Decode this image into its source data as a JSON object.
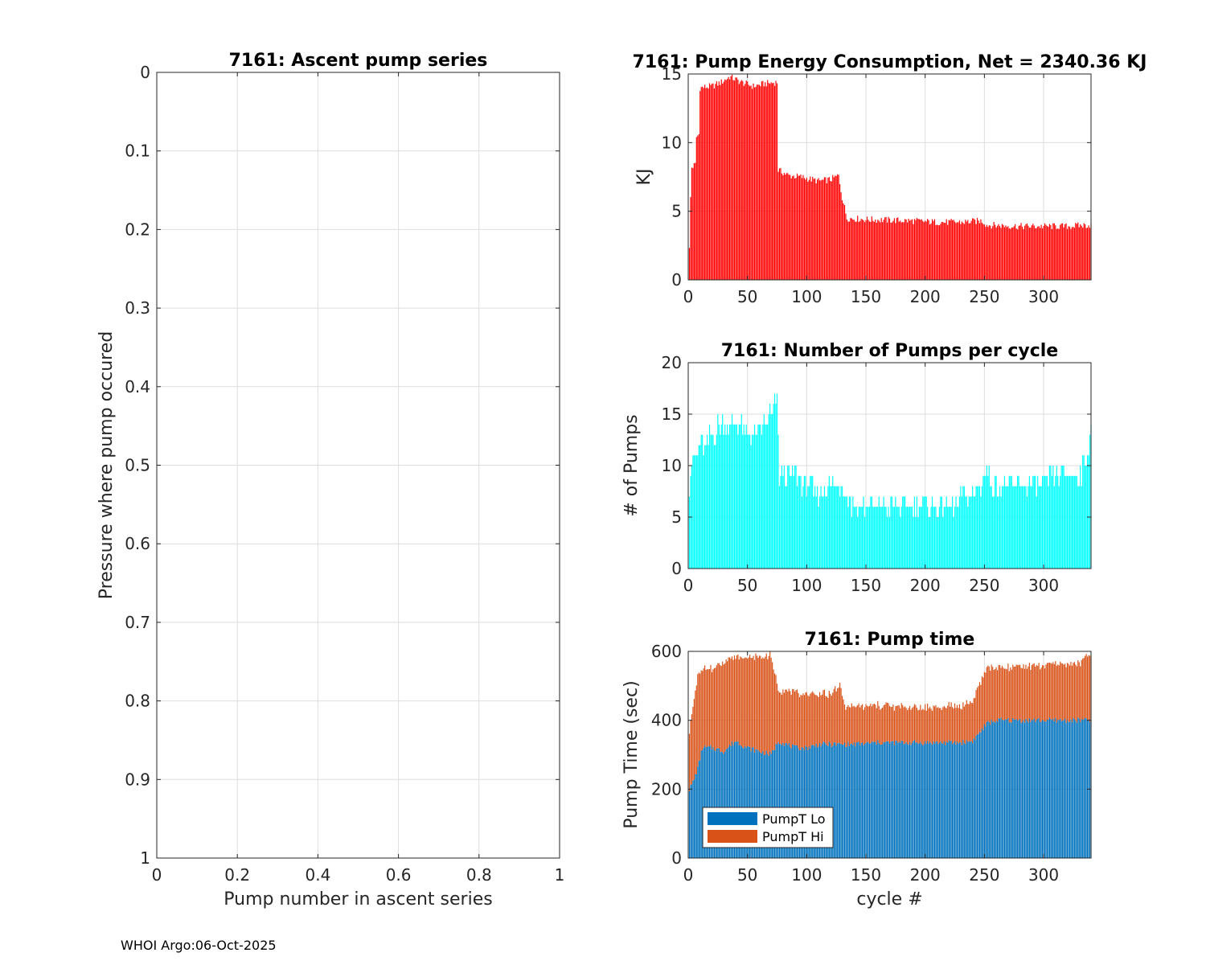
{
  "footer": "WHOI Argo:06-Oct-2025",
  "chart_data": [
    {
      "id": "ascent",
      "type": "scatter",
      "title": "7161: Ascent pump series",
      "xlabel": "Pump number in ascent series",
      "ylabel": "Pressure where pump occured",
      "xlim": [
        0,
        1
      ],
      "ylim": [
        0,
        1
      ],
      "y_reversed": true,
      "xticks": [
        0,
        0.2,
        0.4,
        0.6,
        0.8,
        1
      ],
      "xtick_labels": [
        "0",
        "0.2",
        "0.4",
        "0.6",
        "0.8",
        "1"
      ],
      "yticks": [
        0,
        0.1,
        0.2,
        0.3,
        0.4,
        0.5,
        0.6,
        0.7,
        0.8,
        0.9,
        1
      ],
      "ytick_labels": [
        "0",
        "0.1",
        "0.2",
        "0.3",
        "0.4",
        "0.5",
        "0.6",
        "0.7",
        "0.8",
        "0.9",
        "1"
      ],
      "grid": true,
      "points": []
    },
    {
      "id": "energy",
      "type": "bar",
      "title": "7161: Pump Energy Consumption,  Net = 2340.36 KJ",
      "xlabel": "",
      "ylabel": "KJ",
      "xlim": [
        0,
        340
      ],
      "ylim": [
        0,
        15
      ],
      "xticks": [
        0,
        50,
        100,
        150,
        200,
        250,
        300
      ],
      "xtick_labels": [
        "0",
        "50",
        "100",
        "150",
        "200",
        "250",
        "300"
      ],
      "yticks": [
        0,
        5,
        10,
        15
      ],
      "ytick_labels": [
        "0",
        "5",
        "10",
        "15"
      ],
      "grid": true,
      "color": "#ff0000",
      "profile": [
        [
          1,
          2.2
        ],
        [
          2,
          6.0
        ],
        [
          3,
          8.2
        ],
        [
          6,
          8.4
        ],
        [
          7,
          10.4
        ],
        [
          9,
          10.6
        ],
        [
          10,
          14.0
        ],
        [
          20,
          14.1
        ],
        [
          28,
          14.4
        ],
        [
          35,
          14.8
        ],
        [
          45,
          14.4
        ],
        [
          55,
          14.1
        ],
        [
          65,
          14.3
        ],
        [
          75,
          14.4
        ],
        [
          76,
          8.0
        ],
        [
          85,
          7.6
        ],
        [
          95,
          7.5
        ],
        [
          100,
          7.4
        ],
        [
          110,
          7.2
        ],
        [
          120,
          7.3
        ],
        [
          127,
          7.6
        ],
        [
          130,
          6.0
        ],
        [
          134,
          4.5
        ],
        [
          150,
          4.4
        ],
        [
          170,
          4.35
        ],
        [
          190,
          4.3
        ],
        [
          210,
          4.2
        ],
        [
          230,
          4.2
        ],
        [
          248,
          4.3
        ],
        [
          252,
          4.0
        ],
        [
          280,
          3.9
        ],
        [
          320,
          3.9
        ],
        [
          340,
          4.0
        ]
      ]
    },
    {
      "id": "pumps",
      "type": "bar",
      "title": "7161: Number of Pumps per cycle",
      "xlabel": "",
      "ylabel": "# of Pumps",
      "xlim": [
        0,
        340
      ],
      "ylim": [
        0,
        20
      ],
      "xticks": [
        0,
        50,
        100,
        150,
        200,
        250,
        300
      ],
      "xtick_labels": [
        "0",
        "50",
        "100",
        "150",
        "200",
        "250",
        "300"
      ],
      "yticks": [
        0,
        5,
        10,
        15,
        20
      ],
      "ytick_labels": [
        "0",
        "5",
        "10",
        "15",
        "20"
      ],
      "grid": true,
      "color": "#00ffff",
      "profile": [
        [
          1,
          8
        ],
        [
          3,
          10
        ],
        [
          7,
          11
        ],
        [
          10,
          12
        ],
        [
          15,
          12
        ],
        [
          20,
          13
        ],
        [
          30,
          14
        ],
        [
          40,
          14
        ],
        [
          50,
          13
        ],
        [
          60,
          13
        ],
        [
          70,
          15
        ],
        [
          75,
          16
        ],
        [
          77,
          9
        ],
        [
          90,
          9
        ],
        [
          100,
          8
        ],
        [
          110,
          7
        ],
        [
          120,
          8
        ],
        [
          130,
          8
        ],
        [
          135,
          7
        ],
        [
          140,
          6
        ],
        [
          160,
          6
        ],
        [
          180,
          6
        ],
        [
          200,
          6
        ],
        [
          220,
          6
        ],
        [
          240,
          7
        ],
        [
          245,
          8
        ],
        [
          250,
          9
        ],
        [
          260,
          8
        ],
        [
          280,
          8
        ],
        [
          300,
          8
        ],
        [
          310,
          9
        ],
        [
          330,
          9
        ],
        [
          335,
          10
        ],
        [
          338,
          12
        ],
        [
          340,
          14
        ]
      ]
    },
    {
      "id": "pumptime",
      "type": "bar",
      "stacked": true,
      "title": "7161: Pump time",
      "xlabel": "cycle #",
      "ylabel": "Pump Time (sec)",
      "xlim": [
        0,
        340
      ],
      "ylim": [
        0,
        600
      ],
      "xticks": [
        0,
        50,
        100,
        150,
        200,
        250,
        300
      ],
      "xtick_labels": [
        "0",
        "50",
        "100",
        "150",
        "200",
        "250",
        "300"
      ],
      "yticks": [
        0,
        200,
        400,
        600
      ],
      "ytick_labels": [
        "0",
        "200",
        "400",
        "600"
      ],
      "grid": true,
      "legend": {
        "location": "bottom-left"
      },
      "series": [
        {
          "name": "PumpT Lo",
          "color": "#0072bd",
          "profile": [
            [
              1,
              200
            ],
            [
              4,
              220
            ],
            [
              8,
              260
            ],
            [
              12,
              320
            ],
            [
              20,
              320
            ],
            [
              30,
              310
            ],
            [
              40,
              340
            ],
            [
              50,
              320
            ],
            [
              60,
              310
            ],
            [
              70,
              300
            ],
            [
              76,
              340
            ],
            [
              90,
              320
            ],
            [
              100,
              320
            ],
            [
              110,
              330
            ],
            [
              120,
              330
            ],
            [
              130,
              330
            ],
            [
              140,
              330
            ],
            [
              160,
              335
            ],
            [
              200,
              335
            ],
            [
              230,
              335
            ],
            [
              240,
              340
            ],
            [
              245,
              360
            ],
            [
              252,
              390
            ],
            [
              260,
              400
            ],
            [
              300,
              400
            ],
            [
              340,
              400
            ]
          ]
        },
        {
          "name": "PumpT Hi",
          "color": "#d95319",
          "profile": [
            [
              1,
              170
            ],
            [
              4,
              220
            ],
            [
              8,
              270
            ],
            [
              12,
              225
            ],
            [
              20,
              230
            ],
            [
              30,
              260
            ],
            [
              40,
              245
            ],
            [
              50,
              260
            ],
            [
              60,
              275
            ],
            [
              70,
              285
            ],
            [
              76,
              150
            ],
            [
              90,
              160
            ],
            [
              100,
              155
            ],
            [
              110,
              145
            ],
            [
              120,
              145
            ],
            [
              128,
              170
            ],
            [
              132,
              115
            ],
            [
              140,
              110
            ],
            [
              160,
              108
            ],
            [
              200,
              102
            ],
            [
              230,
              105
            ],
            [
              240,
              115
            ],
            [
              245,
              135
            ],
            [
              252,
              160
            ],
            [
              260,
              150
            ],
            [
              300,
              160
            ],
            [
              330,
              165
            ],
            [
              340,
              190
            ]
          ]
        }
      ]
    }
  ]
}
